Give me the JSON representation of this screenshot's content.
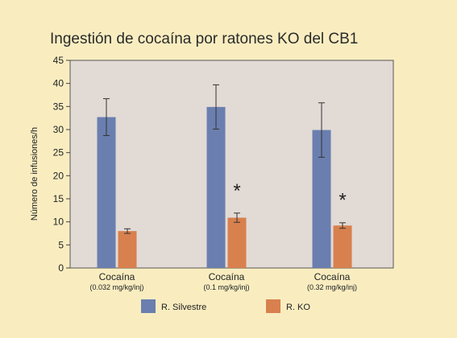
{
  "chart_data": {
    "type": "bar",
    "title": "Ingestión de cocaína por ratones KO del CB1",
    "ylabel": "Número de infusiones/h",
    "xlabel": "",
    "ylim": [
      0,
      45
    ],
    "yticks": [
      0,
      5,
      10,
      15,
      20,
      25,
      30,
      35,
      40,
      45
    ],
    "grid": false,
    "legend_position": "bottom",
    "categories": [
      {
        "label": "Cocaína",
        "sublabel": "(0.032 mg/kg/inj)"
      },
      {
        "label": "Cocaína",
        "sublabel": "(0.1 mg/kg/inj)"
      },
      {
        "label": "Cocaína",
        "sublabel": "(0.32 mg/kg/inj)"
      }
    ],
    "series": [
      {
        "name": "R. Silvestre",
        "color": "#6a7faf",
        "values": [
          32.7,
          34.9,
          29.9
        ],
        "errors": [
          4.0,
          4.8,
          5.9
        ]
      },
      {
        "name": "R. KO",
        "color": "#d8804e",
        "values": [
          8.0,
          10.9,
          9.2
        ],
        "errors": [
          0.5,
          1.0,
          0.6
        ]
      }
    ],
    "annotations": [
      {
        "category": 1,
        "text": "*",
        "y": 18.5
      },
      {
        "category": 2,
        "text": "*",
        "y": 16.5
      }
    ],
    "plot_background": "#e2dad5",
    "page_background": "#f9edc0"
  }
}
